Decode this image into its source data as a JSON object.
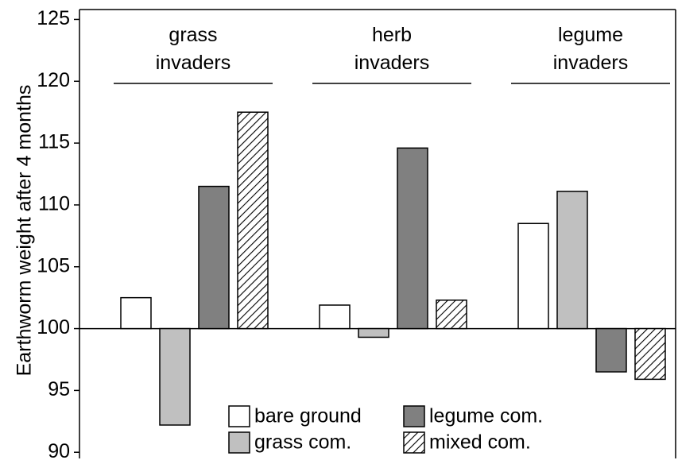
{
  "chart_data": {
    "type": "bar",
    "y_label": "Earthworm weight after 4 months",
    "categories": [
      "grass invaders",
      "herb invaders",
      "legume invaders"
    ],
    "baseline": 100,
    "series": [
      {
        "name": "bare ground",
        "color": "#ffffff",
        "values": [
          102.5,
          101.9,
          108.5
        ]
      },
      {
        "name": "grass com.",
        "color": "#c0c0c0",
        "values": [
          92.2,
          99.3,
          111.1
        ]
      },
      {
        "name": "legume com.",
        "color": "#808080",
        "values": [
          111.5,
          114.6,
          96.5
        ]
      },
      {
        "name": "mixed com.",
        "color": "#000000",
        "hatch": true,
        "values": [
          117.5,
          102.3,
          95.9
        ]
      }
    ],
    "ylim": [
      89.5,
      125.8
    ],
    "yticks": [
      90,
      95,
      100,
      105,
      110,
      115,
      120,
      125
    ]
  }
}
